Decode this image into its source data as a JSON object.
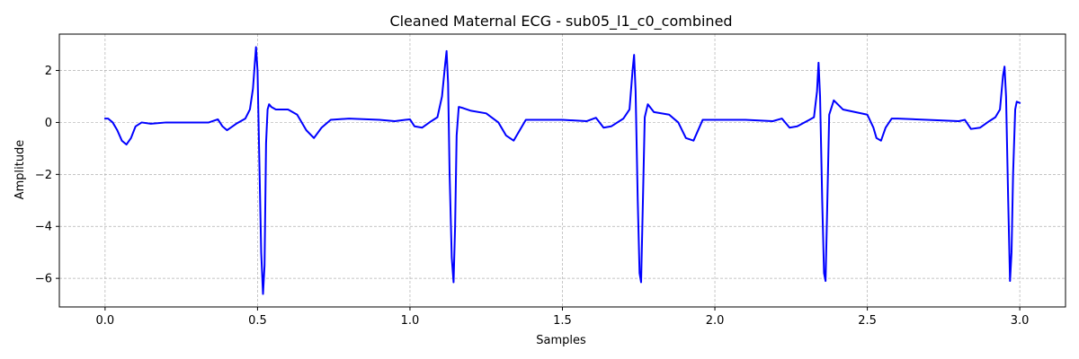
{
  "chart_data": {
    "type": "line",
    "title": "Cleaned Maternal ECG - sub05_l1_c0_combined",
    "xlabel": "Samples",
    "ylabel": "Amplitude",
    "xlim": [
      -0.15,
      3.15
    ],
    "ylim": [
      -7.1,
      3.4
    ],
    "grid": true,
    "line_color": "#0000ff",
    "xticks": [
      {
        "value": 0.0,
        "label": "0.0"
      },
      {
        "value": 0.5,
        "label": "0.5"
      },
      {
        "value": 1.0,
        "label": "1.0"
      },
      {
        "value": 1.5,
        "label": "1.5"
      },
      {
        "value": 2.0,
        "label": "2.0"
      },
      {
        "value": 2.5,
        "label": "2.5"
      },
      {
        "value": 3.0,
        "label": "3.0"
      }
    ],
    "yticks": [
      {
        "value": -6,
        "label": "−6"
      },
      {
        "value": -4,
        "label": "−4"
      },
      {
        "value": -2,
        "label": "−2"
      },
      {
        "value": 0,
        "label": "0"
      },
      {
        "value": 2,
        "label": "2"
      }
    ],
    "series": [
      {
        "x": [
          0.0,
          0.01,
          0.025,
          0.04,
          0.055,
          0.07,
          0.085,
          0.1,
          0.12,
          0.15,
          0.2,
          0.3,
          0.34,
          0.37,
          0.385,
          0.4,
          0.43,
          0.46,
          0.475,
          0.485,
          0.495,
          0.5,
          0.506,
          0.512,
          0.518,
          0.523,
          0.528,
          0.533,
          0.538,
          0.545,
          0.56,
          0.6,
          0.63,
          0.66,
          0.685,
          0.71,
          0.74,
          0.8,
          0.9,
          0.95,
          0.985,
          1.0,
          1.015,
          1.04,
          1.07,
          1.09,
          1.105,
          1.115,
          1.12,
          1.125,
          1.13,
          1.137,
          1.143,
          1.148,
          1.153,
          1.16,
          1.175,
          1.2,
          1.25,
          1.29,
          1.315,
          1.34,
          1.38,
          1.5,
          1.58,
          1.61,
          1.635,
          1.66,
          1.7,
          1.72,
          1.73,
          1.735,
          1.74,
          1.747,
          1.753,
          1.758,
          1.764,
          1.77,
          1.78,
          1.8,
          1.85,
          1.88,
          1.905,
          1.93,
          1.96,
          2.1,
          2.19,
          2.22,
          2.245,
          2.27,
          2.31,
          2.325,
          2.335,
          2.34,
          2.345,
          2.352,
          2.358,
          2.363,
          2.368,
          2.375,
          2.39,
          2.42,
          2.5,
          2.52,
          2.53,
          2.545,
          2.56,
          2.58,
          2.6,
          2.8,
          2.82,
          2.84,
          2.87,
          2.9,
          2.92,
          2.935,
          2.945,
          2.95,
          2.955,
          2.962,
          2.968,
          2.973,
          2.978,
          2.985,
          2.99,
          3.0
        ],
        "y": [
          0.15,
          0.15,
          0.0,
          -0.3,
          -0.7,
          -0.85,
          -0.6,
          -0.15,
          0.0,
          -0.05,
          0.0,
          0.0,
          0.0,
          0.12,
          -0.15,
          -0.3,
          -0.05,
          0.15,
          0.5,
          1.3,
          2.9,
          2.0,
          -1.5,
          -5.0,
          -6.6,
          -5.5,
          -0.8,
          0.5,
          0.7,
          0.6,
          0.5,
          0.5,
          0.3,
          -0.3,
          -0.6,
          -0.2,
          0.1,
          0.15,
          0.1,
          0.05,
          0.1,
          0.12,
          -0.15,
          -0.2,
          0.05,
          0.2,
          1.0,
          2.2,
          2.75,
          1.5,
          -2.0,
          -5.2,
          -6.15,
          -4.0,
          -0.5,
          0.6,
          0.55,
          0.45,
          0.35,
          0.0,
          -0.5,
          -0.7,
          0.1,
          0.1,
          0.05,
          0.18,
          -0.2,
          -0.15,
          0.15,
          0.5,
          2.0,
          2.6,
          1.2,
          -3.0,
          -5.8,
          -6.15,
          -3.0,
          0.2,
          0.7,
          0.4,
          0.3,
          0.0,
          -0.6,
          -0.7,
          0.1,
          0.1,
          0.05,
          0.15,
          -0.2,
          -0.15,
          0.1,
          0.2,
          1.2,
          2.3,
          1.0,
          -3.0,
          -5.8,
          -6.1,
          -3.5,
          0.3,
          0.85,
          0.5,
          0.3,
          -0.2,
          -0.6,
          -0.7,
          -0.2,
          0.15,
          0.15,
          0.05,
          0.1,
          -0.25,
          -0.2,
          0.05,
          0.2,
          0.5,
          1.8,
          2.15,
          1.0,
          -3.0,
          -6.1,
          -5.0,
          -2.0,
          0.5,
          0.8,
          0.75
        ]
      }
    ]
  }
}
